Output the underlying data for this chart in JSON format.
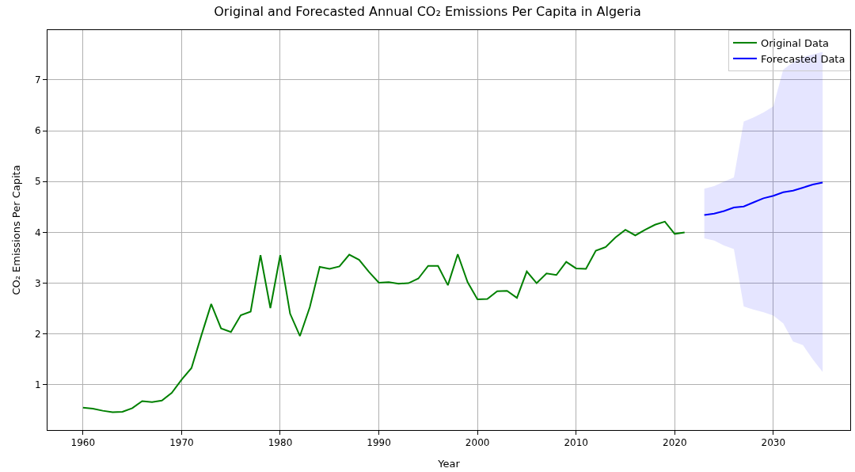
{
  "chart_data": {
    "type": "line",
    "title": "Original and Forecasted Annual CO₂ Emissions Per Capita in Algeria",
    "xlabel": "Year",
    "ylabel": "CO₂ Emissions Per Capita",
    "series": [
      {
        "name": "Original Data",
        "color": "#008000",
        "x": [
          1960,
          1961,
          1962,
          1963,
          1964,
          1965,
          1966,
          1967,
          1968,
          1969,
          1970,
          1971,
          1972,
          1973,
          1974,
          1975,
          1976,
          1977,
          1978,
          1979,
          1980,
          1981,
          1982,
          1983,
          1984,
          1985,
          1986,
          1987,
          1988,
          1989,
          1990,
          1991,
          1992,
          1993,
          1994,
          1995,
          1996,
          1997,
          1998,
          1999,
          2000,
          2001,
          2002,
          2003,
          2004,
          2005,
          2006,
          2007,
          2008,
          2009,
          2010,
          2011,
          2012,
          2013,
          2014,
          2015,
          2016,
          2017,
          2018,
          2019,
          2020,
          2021
        ],
        "values": [
          0.55,
          0.53,
          0.49,
          0.46,
          0.47,
          0.54,
          0.68,
          0.66,
          0.69,
          0.84,
          1.1,
          1.33,
          1.97,
          2.59,
          2.11,
          2.04,
          2.37,
          2.44,
          3.55,
          2.51,
          3.55,
          2.4,
          1.96,
          2.53,
          3.32,
          3.28,
          3.33,
          3.56,
          3.46,
          3.22,
          3.01,
          3.02,
          2.99,
          3.0,
          3.09,
          3.34,
          3.34,
          2.96,
          3.57,
          3.02,
          2.68,
          2.69,
          2.84,
          2.85,
          2.71,
          3.23,
          3.0,
          3.19,
          3.16,
          3.42,
          3.29,
          3.28,
          3.64,
          3.71,
          3.9,
          4.05,
          3.94,
          4.05,
          4.15,
          4.21,
          3.97,
          4.0
        ]
      },
      {
        "name": "Forecasted Data",
        "color": "#0000ff",
        "x": [
          2023,
          2024,
          2025,
          2026,
          2027,
          2028,
          2029,
          2030,
          2031,
          2032,
          2033,
          2034,
          2035
        ],
        "values": [
          4.34,
          4.37,
          4.42,
          4.49,
          4.51,
          4.59,
          4.67,
          4.72,
          4.79,
          4.82,
          4.88,
          4.94,
          4.98
        ],
        "lower": [
          3.88,
          3.84,
          3.74,
          3.67,
          2.54,
          2.48,
          2.43,
          2.36,
          2.21,
          1.85,
          1.78,
          1.5,
          1.25
        ],
        "upper": [
          4.86,
          4.91,
          5.0,
          5.08,
          6.18,
          6.26,
          6.36,
          6.48,
          7.2,
          7.35,
          7.45,
          7.5,
          7.55
        ]
      }
    ],
    "xlim": [
      1956.4,
      2037.8
    ],
    "xticks": [
      1960,
      1970,
      1980,
      1990,
      2000,
      2010,
      2020,
      2030
    ],
    "ylim": [
      0.11,
      7.98
    ],
    "yticks": [
      1,
      2,
      3,
      4,
      5,
      6,
      7
    ],
    "grid": true,
    "legend": "top right",
    "line_style": "solid",
    "marker": "none"
  }
}
